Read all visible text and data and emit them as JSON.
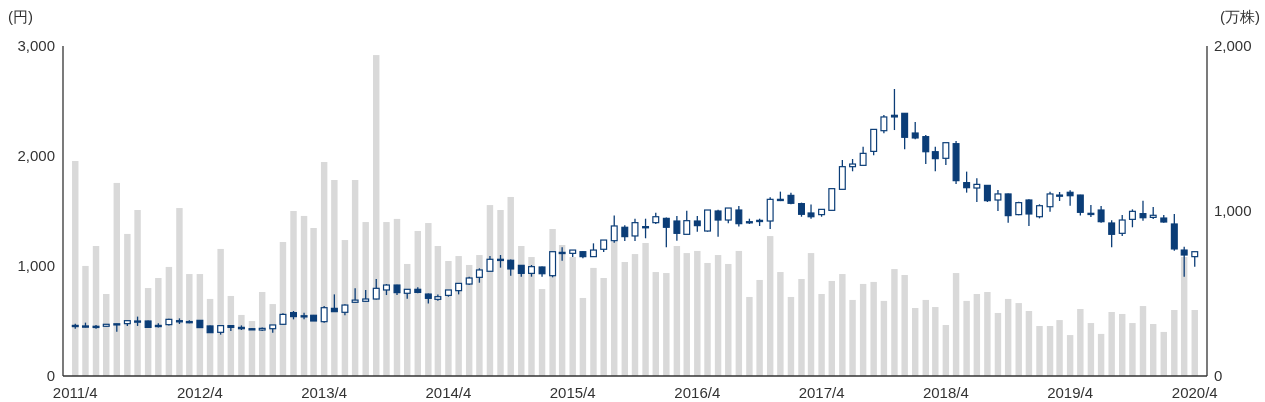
{
  "chart_data": {
    "type": "candlestick",
    "ylabel": "(円)",
    "y2label": "(万株)",
    "color": "#0b3d77",
    "x": [
      "2011-04",
      "2011-05",
      "2011-06",
      "2011-07",
      "2011-08",
      "2011-09",
      "2011-10",
      "2011-11",
      "2011-12",
      "2012-01",
      "2012-02",
      "2012-03",
      "2012-04",
      "2012-05",
      "2012-06",
      "2012-07",
      "2012-08",
      "2012-09",
      "2012-10",
      "2012-11",
      "2012-12",
      "2013-01",
      "2013-02",
      "2013-03",
      "2013-04",
      "2013-05",
      "2013-06",
      "2013-07",
      "2013-08",
      "2013-09",
      "2013-10",
      "2013-11",
      "2013-12",
      "2014-01",
      "2014-02",
      "2014-03",
      "2014-04",
      "2014-05",
      "2014-06",
      "2014-07",
      "2014-08",
      "2014-09",
      "2014-10",
      "2014-11",
      "2014-12",
      "2015-01",
      "2015-02",
      "2015-03",
      "2015-04",
      "2015-05",
      "2015-06",
      "2015-07",
      "2015-08",
      "2015-09",
      "2015-10",
      "2015-11",
      "2015-12",
      "2016-01",
      "2016-02",
      "2016-03",
      "2016-04",
      "2016-05",
      "2016-06",
      "2016-07",
      "2016-08",
      "2016-09",
      "2016-10",
      "2016-11",
      "2016-12",
      "2017-01",
      "2017-02",
      "2017-03",
      "2017-04",
      "2017-05",
      "2017-06",
      "2017-07",
      "2017-08",
      "2017-09",
      "2017-10",
      "2017-11",
      "2017-12",
      "2018-01",
      "2018-02",
      "2018-03",
      "2018-04",
      "2018-05",
      "2018-06",
      "2018-07",
      "2018-08",
      "2018-09",
      "2018-10",
      "2018-11",
      "2018-12",
      "2019-01",
      "2019-02",
      "2019-03",
      "2019-04",
      "2019-05",
      "2019-06",
      "2019-07",
      "2019-08",
      "2019-09",
      "2019-10",
      "2019-11",
      "2019-12",
      "2020-01",
      "2020-02",
      "2020-03",
      "2020-04"
    ],
    "ohlc": [
      [
        455,
        476,
        430,
        460
      ],
      [
        455,
        485,
        442,
        452
      ],
      [
        450,
        464,
        430,
        452
      ],
      [
        452,
        470,
        448,
        470
      ],
      [
        470,
        478,
        403,
        475
      ],
      [
        476,
        505,
        455,
        503
      ],
      [
        495,
        540,
        455,
        500
      ],
      [
        500,
        505,
        440,
        442
      ],
      [
        455,
        479,
        440,
        460
      ],
      [
        467,
        520,
        460,
        515
      ],
      [
        503,
        524,
        473,
        500
      ],
      [
        495,
        506,
        480,
        490
      ],
      [
        506,
        510,
        440,
        440
      ],
      [
        455,
        458,
        394,
        394
      ],
      [
        397,
        458,
        376,
        458
      ],
      [
        458,
        464,
        409,
        442
      ],
      [
        442,
        460,
        418,
        430
      ],
      [
        430,
        435,
        418,
        420
      ],
      [
        418,
        442,
        409,
        433
      ],
      [
        430,
        464,
        394,
        464
      ],
      [
        470,
        570,
        465,
        560
      ],
      [
        576,
        591,
        515,
        540
      ],
      [
        545,
        576,
        515,
        548
      ],
      [
        552,
        555,
        500,
        500
      ],
      [
        494,
        636,
        485,
        621
      ],
      [
        615,
        742,
        585,
        585
      ],
      [
        579,
        652,
        552,
        645
      ],
      [
        670,
        797,
        667,
        690
      ],
      [
        679,
        782,
        676,
        700
      ],
      [
        700,
        882,
        695,
        797
      ],
      [
        782,
        836,
        736,
        827
      ],
      [
        827,
        830,
        736,
        758
      ],
      [
        752,
        788,
        703,
        788
      ],
      [
        788,
        806,
        752,
        760
      ],
      [
        745,
        750,
        660,
        706
      ],
      [
        697,
        742,
        685,
        721
      ],
      [
        733,
        782,
        721,
        782
      ],
      [
        776,
        842,
        742,
        842
      ],
      [
        836,
        903,
        827,
        891
      ],
      [
        897,
        979,
        848,
        964
      ],
      [
        952,
        1091,
        952,
        1061
      ],
      [
        1061,
        1100,
        985,
        1055
      ],
      [
        1052,
        1060,
        912,
        973
      ],
      [
        1006,
        1010,
        903,
        933
      ],
      [
        933,
        1009,
        903,
        994
      ],
      [
        991,
        995,
        903,
        930
      ],
      [
        912,
        1130,
        897,
        1130
      ],
      [
        1121,
        1170,
        1048,
        1124
      ],
      [
        1115,
        1145,
        1082,
        1145
      ],
      [
        1130,
        1133,
        1070,
        1085
      ],
      [
        1085,
        1206,
        1082,
        1145
      ],
      [
        1152,
        1236,
        1127,
        1236
      ],
      [
        1230,
        1458,
        1212,
        1364
      ],
      [
        1352,
        1370,
        1227,
        1267
      ],
      [
        1273,
        1430,
        1227,
        1394
      ],
      [
        1355,
        1430,
        1252,
        1358
      ],
      [
        1394,
        1485,
        1382,
        1448
      ],
      [
        1433,
        1440,
        1170,
        1352
      ],
      [
        1409,
        1455,
        1230,
        1297
      ],
      [
        1288,
        1503,
        1288,
        1412
      ],
      [
        1409,
        1455,
        1312,
        1367
      ],
      [
        1318,
        1509,
        1312,
        1509
      ],
      [
        1500,
        1512,
        1267,
        1418
      ],
      [
        1418,
        1527,
        1388,
        1527
      ],
      [
        1509,
        1545,
        1358,
        1385
      ],
      [
        1400,
        1430,
        1382,
        1403
      ],
      [
        1412,
        1430,
        1364,
        1415
      ],
      [
        1409,
        1624,
        1336,
        1606
      ],
      [
        1600,
        1676,
        1590,
        1606
      ],
      [
        1642,
        1667,
        1561,
        1570
      ],
      [
        1567,
        1576,
        1448,
        1470
      ],
      [
        1482,
        1558,
        1430,
        1448
      ],
      [
        1467,
        1515,
        1448,
        1515
      ],
      [
        1506,
        1703,
        1506,
        1703
      ],
      [
        1697,
        1964,
        1697,
        1903
      ],
      [
        1903,
        1973,
        1861,
        1927
      ],
      [
        1915,
        2085,
        1915,
        2024
      ],
      [
        2042,
        2242,
        2006,
        2242
      ],
      [
        2230,
        2373,
        2206,
        2355
      ],
      [
        2370,
        2609,
        2236,
        2355
      ],
      [
        2388,
        2391,
        2061,
        2170
      ],
      [
        2209,
        2309,
        2152,
        2164
      ],
      [
        2176,
        2191,
        1927,
        2039
      ],
      [
        2039,
        2085,
        1861,
        1976
      ],
      [
        1979,
        2121,
        1918,
        2121
      ],
      [
        2112,
        2136,
        1745,
        1776
      ],
      [
        1758,
        1858,
        1667,
        1712
      ],
      [
        1709,
        1797,
        1582,
        1742
      ],
      [
        1733,
        1736,
        1582,
        1594
      ],
      [
        1600,
        1691,
        1500,
        1655
      ],
      [
        1655,
        1660,
        1394,
        1458
      ],
      [
        1467,
        1585,
        1461,
        1576
      ],
      [
        1600,
        1606,
        1364,
        1473
      ],
      [
        1448,
        1561,
        1433,
        1548
      ],
      [
        1539,
        1676,
        1494,
        1655
      ],
      [
        1642,
        1673,
        1591,
        1645
      ],
      [
        1670,
        1688,
        1548,
        1639
      ],
      [
        1645,
        1648,
        1458,
        1488
      ],
      [
        1479,
        1555,
        1445,
        1473
      ],
      [
        1509,
        1545,
        1394,
        1403
      ],
      [
        1391,
        1415,
        1170,
        1288
      ],
      [
        1297,
        1464,
        1273,
        1418
      ],
      [
        1424,
        1515,
        1352,
        1497
      ],
      [
        1476,
        1594,
        1412,
        1439
      ],
      [
        1442,
        1536,
        1427,
        1461
      ],
      [
        1436,
        1464,
        1394,
        1400
      ],
      [
        1382,
        1473,
        1139,
        1155
      ],
      [
        1145,
        1176,
        903,
        1100
      ],
      [
        1085,
        1130,
        994,
        1130
      ]
    ],
    "series": [
      {
        "type": "bar",
        "axis": "y2",
        "color": "#d9d9d9",
        "values": [
          1303,
          667,
          788,
          497,
          1170,
          861,
          1006,
          533,
          594,
          661,
          1018,
          618,
          618,
          467,
          770,
          485,
          370,
          333,
          509,
          436,
          812,
          1000,
          970,
          897,
          1297,
          1188,
          824,
          1188,
          933,
          1945,
          933,
          952,
          679,
          879,
          927,
          788,
          697,
          727,
          673,
          733,
          1036,
          1006,
          1085,
          788,
          721,
          527,
          891,
          794,
          721,
          473,
          655,
          594,
          814,
          691,
          739,
          806,
          630,
          624,
          788,
          745,
          758,
          685,
          733,
          679,
          758,
          479,
          582,
          848,
          630,
          479,
          588,
          745,
          497,
          576,
          618,
          461,
          558,
          570,
          455,
          648,
          612,
          412,
          461,
          418,
          309,
          624,
          455,
          497,
          509,
          382,
          467,
          442,
          394,
          303,
          303,
          339,
          248,
          406,
          321,
          255,
          388,
          376,
          321,
          424,
          315,
          267,
          400,
          721,
          400
        ]
      }
    ],
    "xlim": [
      "2011-02-24",
      "2020-05-07"
    ],
    "xticks": [
      {
        "value": "2011-04",
        "label": "2011/4"
      },
      {
        "value": "2012-04",
        "label": "2012/4"
      },
      {
        "value": "2013-04",
        "label": "2013/4"
      },
      {
        "value": "2014-04",
        "label": "2014/4"
      },
      {
        "value": "2015-04",
        "label": "2015/4"
      },
      {
        "value": "2016-04",
        "label": "2016/4"
      },
      {
        "value": "2017-04",
        "label": "2017/4"
      },
      {
        "value": "2018-04",
        "label": "2018/4"
      },
      {
        "value": "2019-04",
        "label": "2019/4"
      },
      {
        "value": "2020-04",
        "label": "2020/4"
      }
    ],
    "ylim": [
      0,
      3000
    ],
    "yticks": [
      0,
      {
        "value": 1000,
        "label": "1,000"
      },
      {
        "value": 2000,
        "label": "2,000"
      },
      {
        "value": 3000,
        "label": "3,000"
      }
    ],
    "y2lim": [
      0,
      2000
    ],
    "y2ticks": [
      0,
      {
        "value": 1000,
        "label": "1,000"
      },
      {
        "value": 2000,
        "label": "2,000"
      }
    ]
  }
}
